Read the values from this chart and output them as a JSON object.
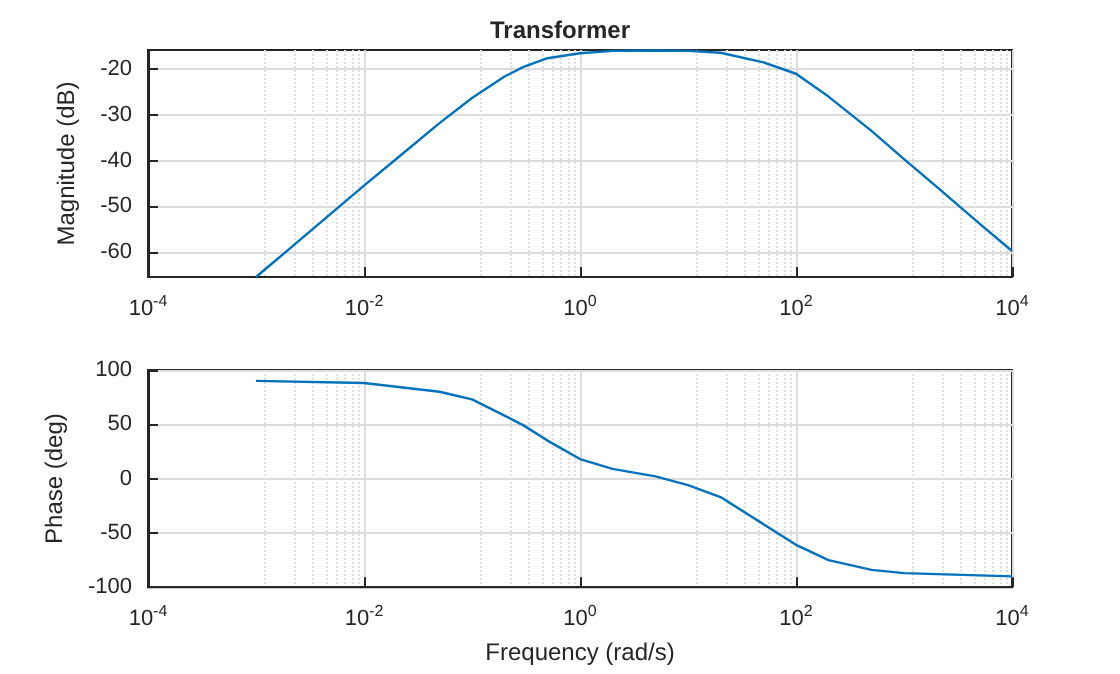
{
  "chart_data": [
    {
      "type": "line",
      "title": "Transformer",
      "ylabel": "Magnitude (dB)",
      "log": "x",
      "grid": true,
      "marker": "none",
      "xlim": [
        0.0001,
        10000
      ],
      "xticks": [
        {
          "value": 0.0001,
          "label": "10$^{-4}$"
        },
        {
          "value": 0.01,
          "label": "10$^{-2}$"
        },
        {
          "value": 1,
          "label": "10$^{0}$"
        },
        {
          "value": 100,
          "label": "10$^{2}$"
        },
        {
          "value": 10000,
          "label": "10$^{4}$"
        }
      ],
      "ylim": [
        -65.5,
        -15.8
      ],
      "yticks": [
        -60,
        -50,
        -40,
        -30,
        -20
      ],
      "x": [
        0.001,
        0.002,
        0.005,
        0.01,
        0.02,
        0.05,
        0.1,
        0.2,
        0.3,
        0.5,
        1,
        2,
        5,
        10,
        20,
        50,
        100,
        200,
        500,
        1000,
        2000,
        5000,
        10000
      ],
      "series": [
        {
          "color": "#0072bd",
          "values": [
            -65.5,
            -59.5,
            -51.5,
            -45.5,
            -39.6,
            -31.8,
            -26.3,
            -21.6,
            -19.5,
            -17.6,
            -16.5,
            -16.0,
            -15.9,
            -16.0,
            -16.4,
            -18.5,
            -21.0,
            -26.0,
            -33.5,
            -39.7,
            -45.7,
            -53.8,
            -59.8
          ]
        }
      ]
    },
    {
      "type": "line",
      "xlabel": "Frequency (rad/s)",
      "ylabel": "Phase (deg)",
      "log": "x",
      "grid": true,
      "marker": "none",
      "xlim": [
        0.0001,
        10000
      ],
      "xticks": [
        {
          "value": 0.0001,
          "label": "10$^{-4}$"
        },
        {
          "value": 0.01,
          "label": "10$^{-2}$"
        },
        {
          "value": 1,
          "label": "10$^{0}$"
        },
        {
          "value": 100,
          "label": "10$^{2}$"
        },
        {
          "value": 10000,
          "label": "10$^{4}$"
        }
      ],
      "ylim": [
        -100,
        100
      ],
      "yticks": [
        -100,
        -50,
        0,
        50,
        100
      ],
      "x": [
        0.001,
        0.01,
        0.05,
        0.1,
        0.2,
        0.3,
        0.5,
        1,
        2,
        5,
        10,
        20,
        50,
        100,
        200,
        500,
        1000,
        10000
      ],
      "series": [
        {
          "color": "#0072bd",
          "values": [
            90,
            88,
            80,
            73,
            58,
            49,
            35,
            18,
            9,
            2,
            -6,
            -17,
            -42,
            -61,
            -75,
            -84,
            -87,
            -90
          ]
        }
      ]
    }
  ]
}
